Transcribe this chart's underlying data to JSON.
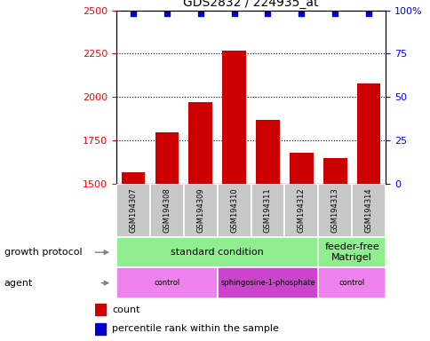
{
  "title": "GDS2832 / 224935_at",
  "samples": [
    "GSM194307",
    "GSM194308",
    "GSM194309",
    "GSM194310",
    "GSM194311",
    "GSM194312",
    "GSM194313",
    "GSM194314"
  ],
  "counts": [
    1570,
    1800,
    1970,
    2270,
    1870,
    1680,
    1650,
    2080
  ],
  "bar_color": "#cc0000",
  "dot_color": "#0000cc",
  "ylim_left": [
    1500,
    2500
  ],
  "ylim_right": [
    0,
    100
  ],
  "yticks_left": [
    1500,
    1750,
    2000,
    2250,
    2500
  ],
  "yticks_right": [
    0,
    25,
    50,
    75,
    100
  ],
  "ytick_right_labels": [
    "0",
    "25",
    "50",
    "75",
    "100%"
  ],
  "growth_protocol_color": "#90ee90",
  "agent_color_light": "#ee82ee",
  "agent_color_dark": "#cc44cc",
  "sample_bg_color": "#c8c8c8",
  "growth_protocol_labels": [
    {
      "text": "standard condition",
      "start": 0,
      "end": 6
    },
    {
      "text": "feeder-free\nMatrigel",
      "start": 6,
      "end": 8
    }
  ],
  "agent_labels": [
    {
      "text": "control",
      "start": 0,
      "end": 3,
      "color": "#ee82ee"
    },
    {
      "text": "sphingosine-1-phosphate",
      "start": 3,
      "end": 6,
      "color": "#cc44cc"
    },
    {
      "text": "control",
      "start": 6,
      "end": 8,
      "color": "#ee82ee"
    }
  ],
  "legend_count_label": "count",
  "legend_pct_label": "percentile rank within the sample",
  "growth_protocol_text": "growth protocol",
  "agent_text": "agent",
  "title_fontsize": 10,
  "tick_fontsize": 8,
  "label_fontsize": 8,
  "sample_fontsize": 6,
  "row_label_fontsize": 8,
  "legend_fontsize": 8
}
